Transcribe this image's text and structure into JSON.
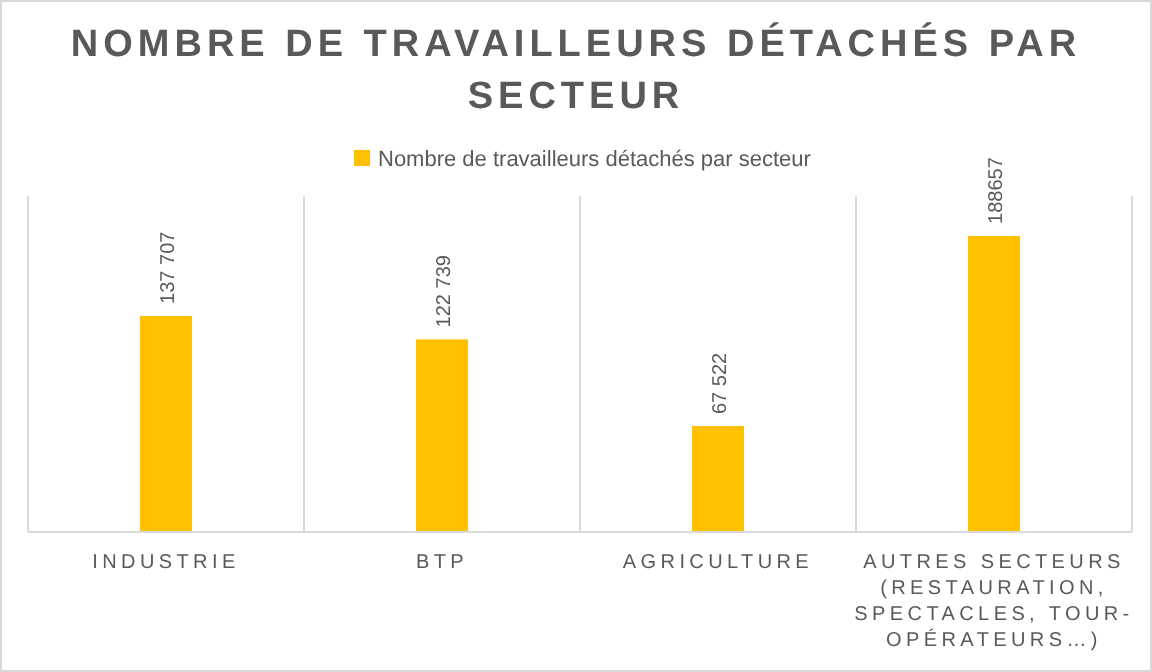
{
  "chart_data": {
    "type": "bar",
    "title": "NOMBRE DE TRAVAILLEURS DÉTACHÉS PAR SECTEUR",
    "categories": [
      "INDUSTRIE",
      "BTP",
      "AGRICULTURE",
      "AUTRES SECTEURS (RESTAURATION, SPECTACLES, TOUR-OPÉRATEURS…)"
    ],
    "series": [
      {
        "name": "Nombre de travailleurs détachés par secteur",
        "color": "#ffc000",
        "values": [
          137707,
          122739,
          67522,
          188657
        ],
        "value_labels": [
          "137 707",
          "122 739",
          "67 522",
          "188657"
        ]
      }
    ],
    "grid": "x",
    "legend": "top"
  }
}
